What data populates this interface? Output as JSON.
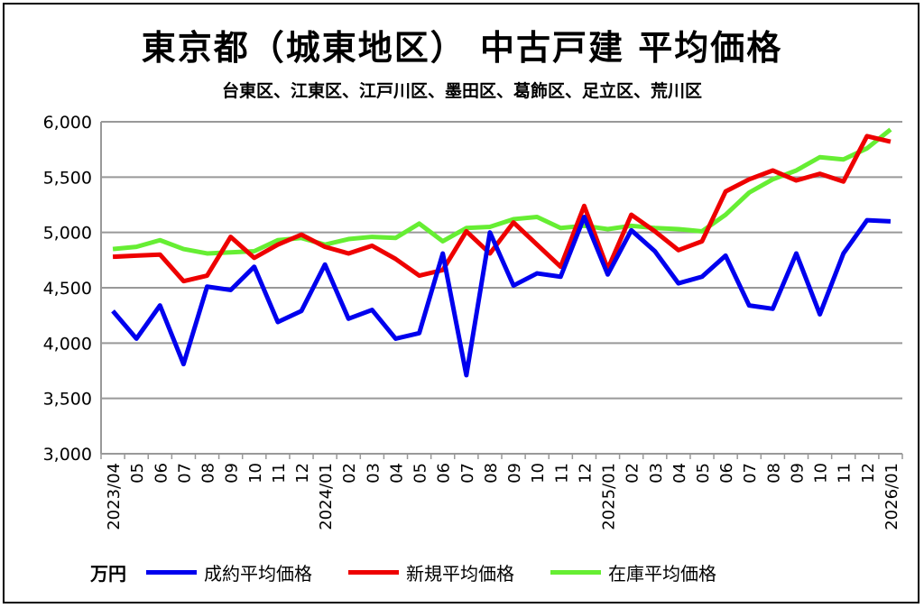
{
  "chart_data": {
    "type": "line",
    "title": "東京都（城東地区） 中古戸建 平均価格",
    "subtitle": "台東区、江東区、江戸川区、墨田区、葛飾区、足立区、荒川区",
    "ylabel": "万円",
    "ylim": [
      3000,
      6000
    ],
    "yticks": [
      3000,
      3500,
      4000,
      4500,
      5000,
      5500,
      6000
    ],
    "ytick_labels": [
      "3,000",
      "3,500",
      "4,000",
      "4,500",
      "5,000",
      "5,500",
      "6,000"
    ],
    "grid": true,
    "legend_position": "bottom",
    "categories": [
      "2023/04",
      "05",
      "06",
      "07",
      "08",
      "09",
      "10",
      "11",
      "12",
      "2024/01",
      "02",
      "03",
      "04",
      "05",
      "06",
      "07",
      "08",
      "09",
      "10",
      "11",
      "12",
      "2025/01",
      "02",
      "03",
      "04",
      "05",
      "06",
      "07",
      "08",
      "09",
      "10",
      "11",
      "12",
      "2026/01"
    ],
    "series": [
      {
        "name": "成約平均価格",
        "color": "#0000ee",
        "values": [
          4290,
          4040,
          4340,
          3810,
          4510,
          4480,
          4690,
          4190,
          4290,
          4710,
          4220,
          4300,
          4040,
          4090,
          4810,
          3710,
          5000,
          4520,
          4630,
          4600,
          5140,
          4620,
          5020,
          4830,
          4540,
          4600,
          4790,
          4340,
          4310,
          4810,
          4260,
          4810,
          5110,
          5100
        ]
      },
      {
        "name": "新規平均価格",
        "color": "#ee0000",
        "values": [
          4780,
          4790,
          4800,
          4560,
          4610,
          4960,
          4770,
          4890,
          4980,
          4870,
          4810,
          4880,
          4760,
          4610,
          4660,
          5010,
          4810,
          5090,
          4890,
          4690,
          5240,
          4670,
          5160,
          5010,
          4840,
          4920,
          5370,
          5480,
          5560,
          5470,
          5530,
          5460,
          5870,
          5820
        ]
      },
      {
        "name": "在庫平均価格",
        "color": "#66ee33",
        "values": [
          4850,
          4870,
          4930,
          4850,
          4810,
          4820,
          4830,
          4930,
          4950,
          4890,
          4940,
          4960,
          4950,
          5080,
          4920,
          5040,
          5050,
          5120,
          5140,
          5040,
          5060,
          5030,
          5060,
          5040,
          5030,
          5010,
          5160,
          5360,
          5480,
          5560,
          5680,
          5660,
          5760,
          5930
        ]
      }
    ]
  }
}
